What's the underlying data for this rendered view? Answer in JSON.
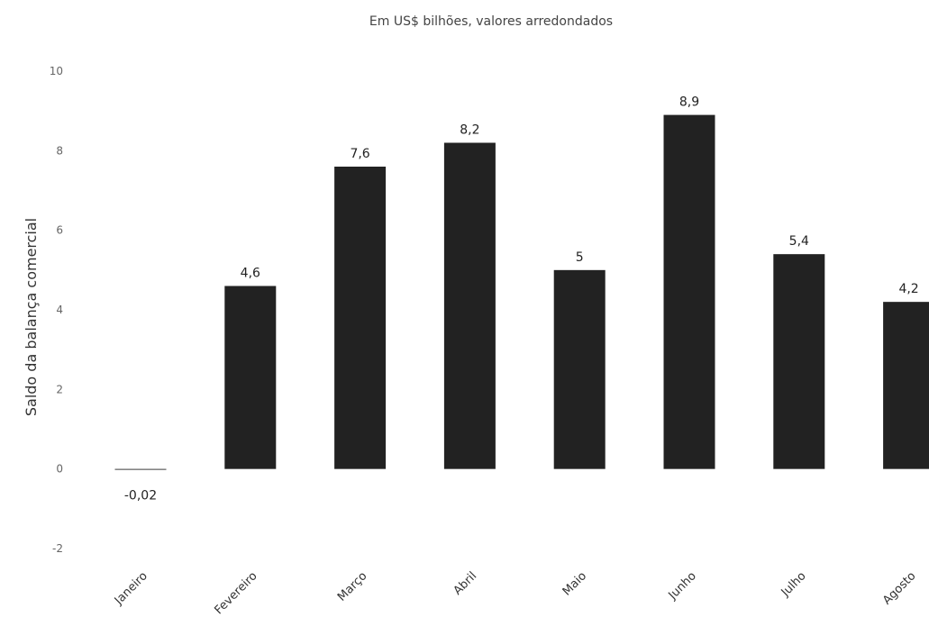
{
  "chart_data": {
    "type": "bar",
    "subtitle": "Em US$ bilhões, valores arredondados",
    "ylabel": "Saldo da balança comercial",
    "xlabel": "",
    "categories": [
      "Janeiro",
      "Fevereiro",
      "Março",
      "Abril",
      "Maio",
      "Junho",
      "Julho",
      "Agosto"
    ],
    "values": [
      -0.02,
      4.6,
      7.6,
      8.2,
      5,
      8.9,
      5.4,
      4.2
    ],
    "data_labels": [
      "-0,02",
      "4,6",
      "7,6",
      "8,2",
      "5",
      "8,9",
      "5,4",
      "4,2"
    ],
    "ylim": [
      -2,
      10
    ],
    "yticks": [
      -2,
      0,
      2,
      4,
      6,
      8,
      10
    ],
    "ytick_labels": [
      "-2",
      "0",
      "2",
      "4",
      "6",
      "8",
      "10"
    ],
    "grid": false,
    "legend": "none",
    "bar_color": "#222222"
  }
}
